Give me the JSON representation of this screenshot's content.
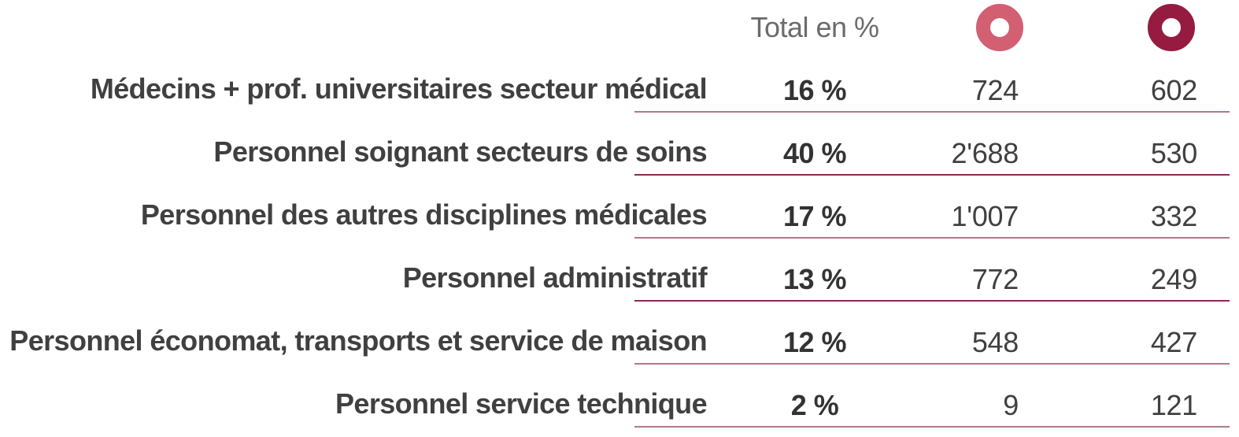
{
  "header": {
    "total_label": "Total en %",
    "legend": [
      {
        "icon": "ring-icon-light",
        "color": "#d35f72"
      },
      {
        "icon": "ring-icon-dark",
        "color": "#961b41"
      }
    ]
  },
  "rows": [
    {
      "label": "Médecins + prof. universitaires secteur médical",
      "pct": "16 %",
      "v1": "724",
      "v2": "602"
    },
    {
      "label": "Personnel soignant secteurs de soins",
      "pct": "40 %",
      "v1": "2'688",
      "v2": "530"
    },
    {
      "label": "Personnel des autres disciplines médicales",
      "pct": "17 %",
      "v1": "1'007",
      "v2": "332"
    },
    {
      "label": "Personnel administratif",
      "pct": "13 %",
      "v1": "772",
      "v2": "249"
    },
    {
      "label": "Personnel économat, transports et service de maison",
      "pct": "12 %",
      "v1": "548",
      "v2": "427"
    },
    {
      "label": "Personnel service technique",
      "pct": "2 %",
      "v1": "9",
      "v2": "121"
    }
  ],
  "colors": {
    "divider_light": "#b07a90",
    "divider_dark": "#8a2a55",
    "text": "#404040"
  }
}
